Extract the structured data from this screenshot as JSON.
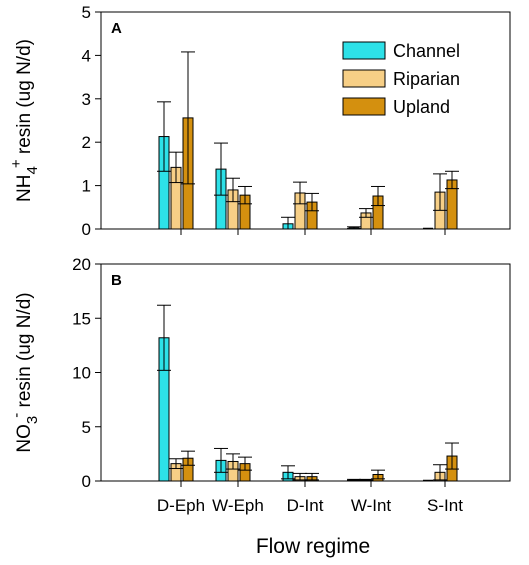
{
  "chart_data": [
    {
      "type": "bar",
      "panel_label": "A",
      "categories": [
        "D-Eph",
        "W-Eph",
        "D-Int",
        "W-Int",
        "S-Int"
      ],
      "ylabel": {
        "main": "NH",
        "sub": "4",
        "sup": "+",
        "rest": " resin (ug N/d)"
      },
      "ylim": [
        0,
        5
      ],
      "yticks": [
        "0",
        "1",
        "2",
        "3",
        "4",
        "5"
      ],
      "legend_position": "top-right",
      "series": [
        {
          "name": "Channel",
          "color": "#2de1e8",
          "values": [
            2.13,
            1.38,
            0.12,
            0.03,
            0.0
          ],
          "errors": [
            0.8,
            0.6,
            0.15,
            0.02,
            0.0
          ]
        },
        {
          "name": "Riparian",
          "color": "#f7cf86",
          "values": [
            1.42,
            0.9,
            0.83,
            0.37,
            0.85
          ],
          "errors": [
            0.35,
            0.27,
            0.25,
            0.1,
            0.42
          ]
        },
        {
          "name": "Upland",
          "color": "#d4900f",
          "values": [
            2.56,
            0.78,
            0.62,
            0.76,
            1.13
          ],
          "errors": [
            1.52,
            0.2,
            0.2,
            0.22,
            0.2
          ]
        }
      ]
    },
    {
      "type": "bar",
      "panel_label": "B",
      "categories": [
        "D-Eph",
        "W-Eph",
        "D-Int",
        "W-Int",
        "S-Int"
      ],
      "ylabel": {
        "main": "NO",
        "sub": "3",
        "sup": "-",
        "rest": " resin (ug N/d)"
      },
      "ylim": [
        0,
        20
      ],
      "yticks": [
        "0",
        "5",
        "10",
        "15",
        "20"
      ],
      "series": [
        {
          "name": "Channel",
          "color": "#2de1e8",
          "values": [
            13.2,
            1.9,
            0.8,
            0.1,
            0.0
          ],
          "errors": [
            3.0,
            1.1,
            0.6,
            0.05,
            0.0
          ]
        },
        {
          "name": "Riparian",
          "color": "#f7cf86",
          "values": [
            1.6,
            1.8,
            0.4,
            0.1,
            0.8
          ],
          "errors": [
            0.45,
            0.7,
            0.3,
            0.05,
            0.7
          ]
        },
        {
          "name": "Upland",
          "color": "#d4900f",
          "values": [
            2.1,
            1.6,
            0.4,
            0.6,
            2.3
          ],
          "errors": [
            0.65,
            0.6,
            0.3,
            0.4,
            1.2
          ]
        }
      ]
    }
  ],
  "xlabel": "Flow regime"
}
